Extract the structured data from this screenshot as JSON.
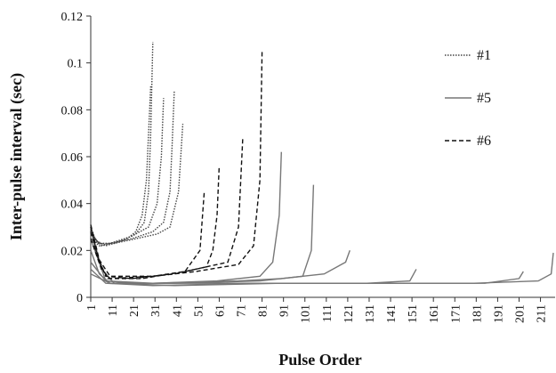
{
  "chart_data": {
    "type": "line",
    "xlabel": "Pulse Order",
    "ylabel": "Inter-pulse interval (sec)",
    "xlim": [
      1,
      217
    ],
    "xticks": [
      1,
      11,
      21,
      31,
      41,
      51,
      61,
      71,
      81,
      91,
      101,
      111,
      121,
      131,
      141,
      151,
      161,
      171,
      181,
      191,
      201,
      211
    ],
    "ylim": [
      0,
      0.12
    ],
    "yticks": [
      0,
      0.02,
      0.04,
      0.06,
      0.08,
      0.1,
      0.12
    ],
    "legend": "upper right",
    "series": [
      {
        "name": "#1",
        "color": "#444444",
        "dash": "dotted",
        "traces": [
          {
            "x": [
              1,
              3,
              6,
              12,
              18,
              22,
              25,
              27,
              28,
              29
            ],
            "values": [
              0.03,
              0.025,
              0.022,
              0.023,
              0.025,
              0.028,
              0.035,
              0.05,
              0.07,
              0.09
            ]
          },
          {
            "x": [
              1,
              4,
              8,
              15,
              22,
              26,
              28,
              29,
              30
            ],
            "values": [
              0.028,
              0.024,
              0.022,
              0.024,
              0.027,
              0.032,
              0.045,
              0.07,
              0.109
            ]
          },
          {
            "x": [
              1,
              5,
              10,
              20,
              30,
              35,
              38,
              39,
              40
            ],
            "values": [
              0.025,
              0.022,
              0.023,
              0.025,
              0.028,
              0.032,
              0.045,
              0.065,
              0.088
            ]
          },
          {
            "x": [
              1,
              5,
              12,
              22,
              32,
              38,
              42,
              44
            ],
            "values": [
              0.027,
              0.023,
              0.023,
              0.025,
              0.027,
              0.03,
              0.045,
              0.074
            ]
          },
          {
            "x": [
              1,
              4,
              10,
              20,
              28,
              32,
              34,
              35
            ],
            "values": [
              0.029,
              0.023,
              0.023,
              0.026,
              0.03,
              0.04,
              0.06,
              0.085
            ]
          }
        ]
      },
      {
        "name": "#5",
        "color": "#777777",
        "dash": "solid",
        "traces": [
          {
            "x": [
              1,
              5,
              10,
              30,
              60,
              80,
              86,
              89,
              90
            ],
            "values": [
              0.02,
              0.01,
              0.006,
              0.006,
              0.007,
              0.009,
              0.015,
              0.035,
              0.062
            ]
          },
          {
            "x": [
              1,
              6,
              12,
              40,
              80,
              100,
              104,
              105
            ],
            "values": [
              0.03,
              0.012,
              0.006,
              0.006,
              0.007,
              0.009,
              0.02,
              0.048
            ]
          },
          {
            "x": [
              1,
              8,
              20,
              60,
              100,
              130,
              150,
              153
            ],
            "values": [
              0.015,
              0.007,
              0.006,
              0.006,
              0.006,
              0.006,
              0.007,
              0.012
            ]
          },
          {
            "x": [
              1,
              8,
              30,
              80,
              120,
              160,
              185,
              201,
              203
            ],
            "values": [
              0.012,
              0.006,
              0.005,
              0.006,
              0.006,
              0.006,
              0.006,
              0.008,
              0.011
            ]
          },
          {
            "x": [
              1,
              10,
              40,
              90,
              140,
              180,
              210,
              216,
              217
            ],
            "values": [
              0.01,
              0.006,
              0.005,
              0.006,
              0.006,
              0.006,
              0.007,
              0.01,
              0.019
            ]
          },
          {
            "x": [
              1,
              8,
              30,
              70,
              90,
              110,
              120,
              122
            ],
            "values": [
              0.025,
              0.007,
              0.006,
              0.007,
              0.008,
              0.01,
              0.015,
              0.02
            ]
          }
        ]
      },
      {
        "name": "#6",
        "color": "#111111",
        "dash": "dashed",
        "traces": [
          {
            "x": [
              1,
              4,
              8,
              20,
              40,
              55,
              58,
              60,
              61
            ],
            "values": [
              0.03,
              0.018,
              0.009,
              0.008,
              0.01,
              0.013,
              0.02,
              0.035,
              0.056
            ]
          },
          {
            "x": [
              1,
              5,
              9,
              25,
              45,
              65,
              70,
              72
            ],
            "values": [
              0.028,
              0.015,
              0.008,
              0.008,
              0.011,
              0.015,
              0.03,
              0.068
            ]
          },
          {
            "x": [
              1,
              5,
              10,
              30,
              50,
              70,
              77,
              80,
              81
            ],
            "values": [
              0.031,
              0.016,
              0.009,
              0.009,
              0.011,
              0.014,
              0.022,
              0.05,
              0.105
            ]
          },
          {
            "x": [
              1,
              6,
              10,
              30,
              45,
              52,
              54
            ],
            "values": [
              0.025,
              0.012,
              0.008,
              0.009,
              0.011,
              0.02,
              0.045
            ]
          }
        ]
      }
    ]
  }
}
